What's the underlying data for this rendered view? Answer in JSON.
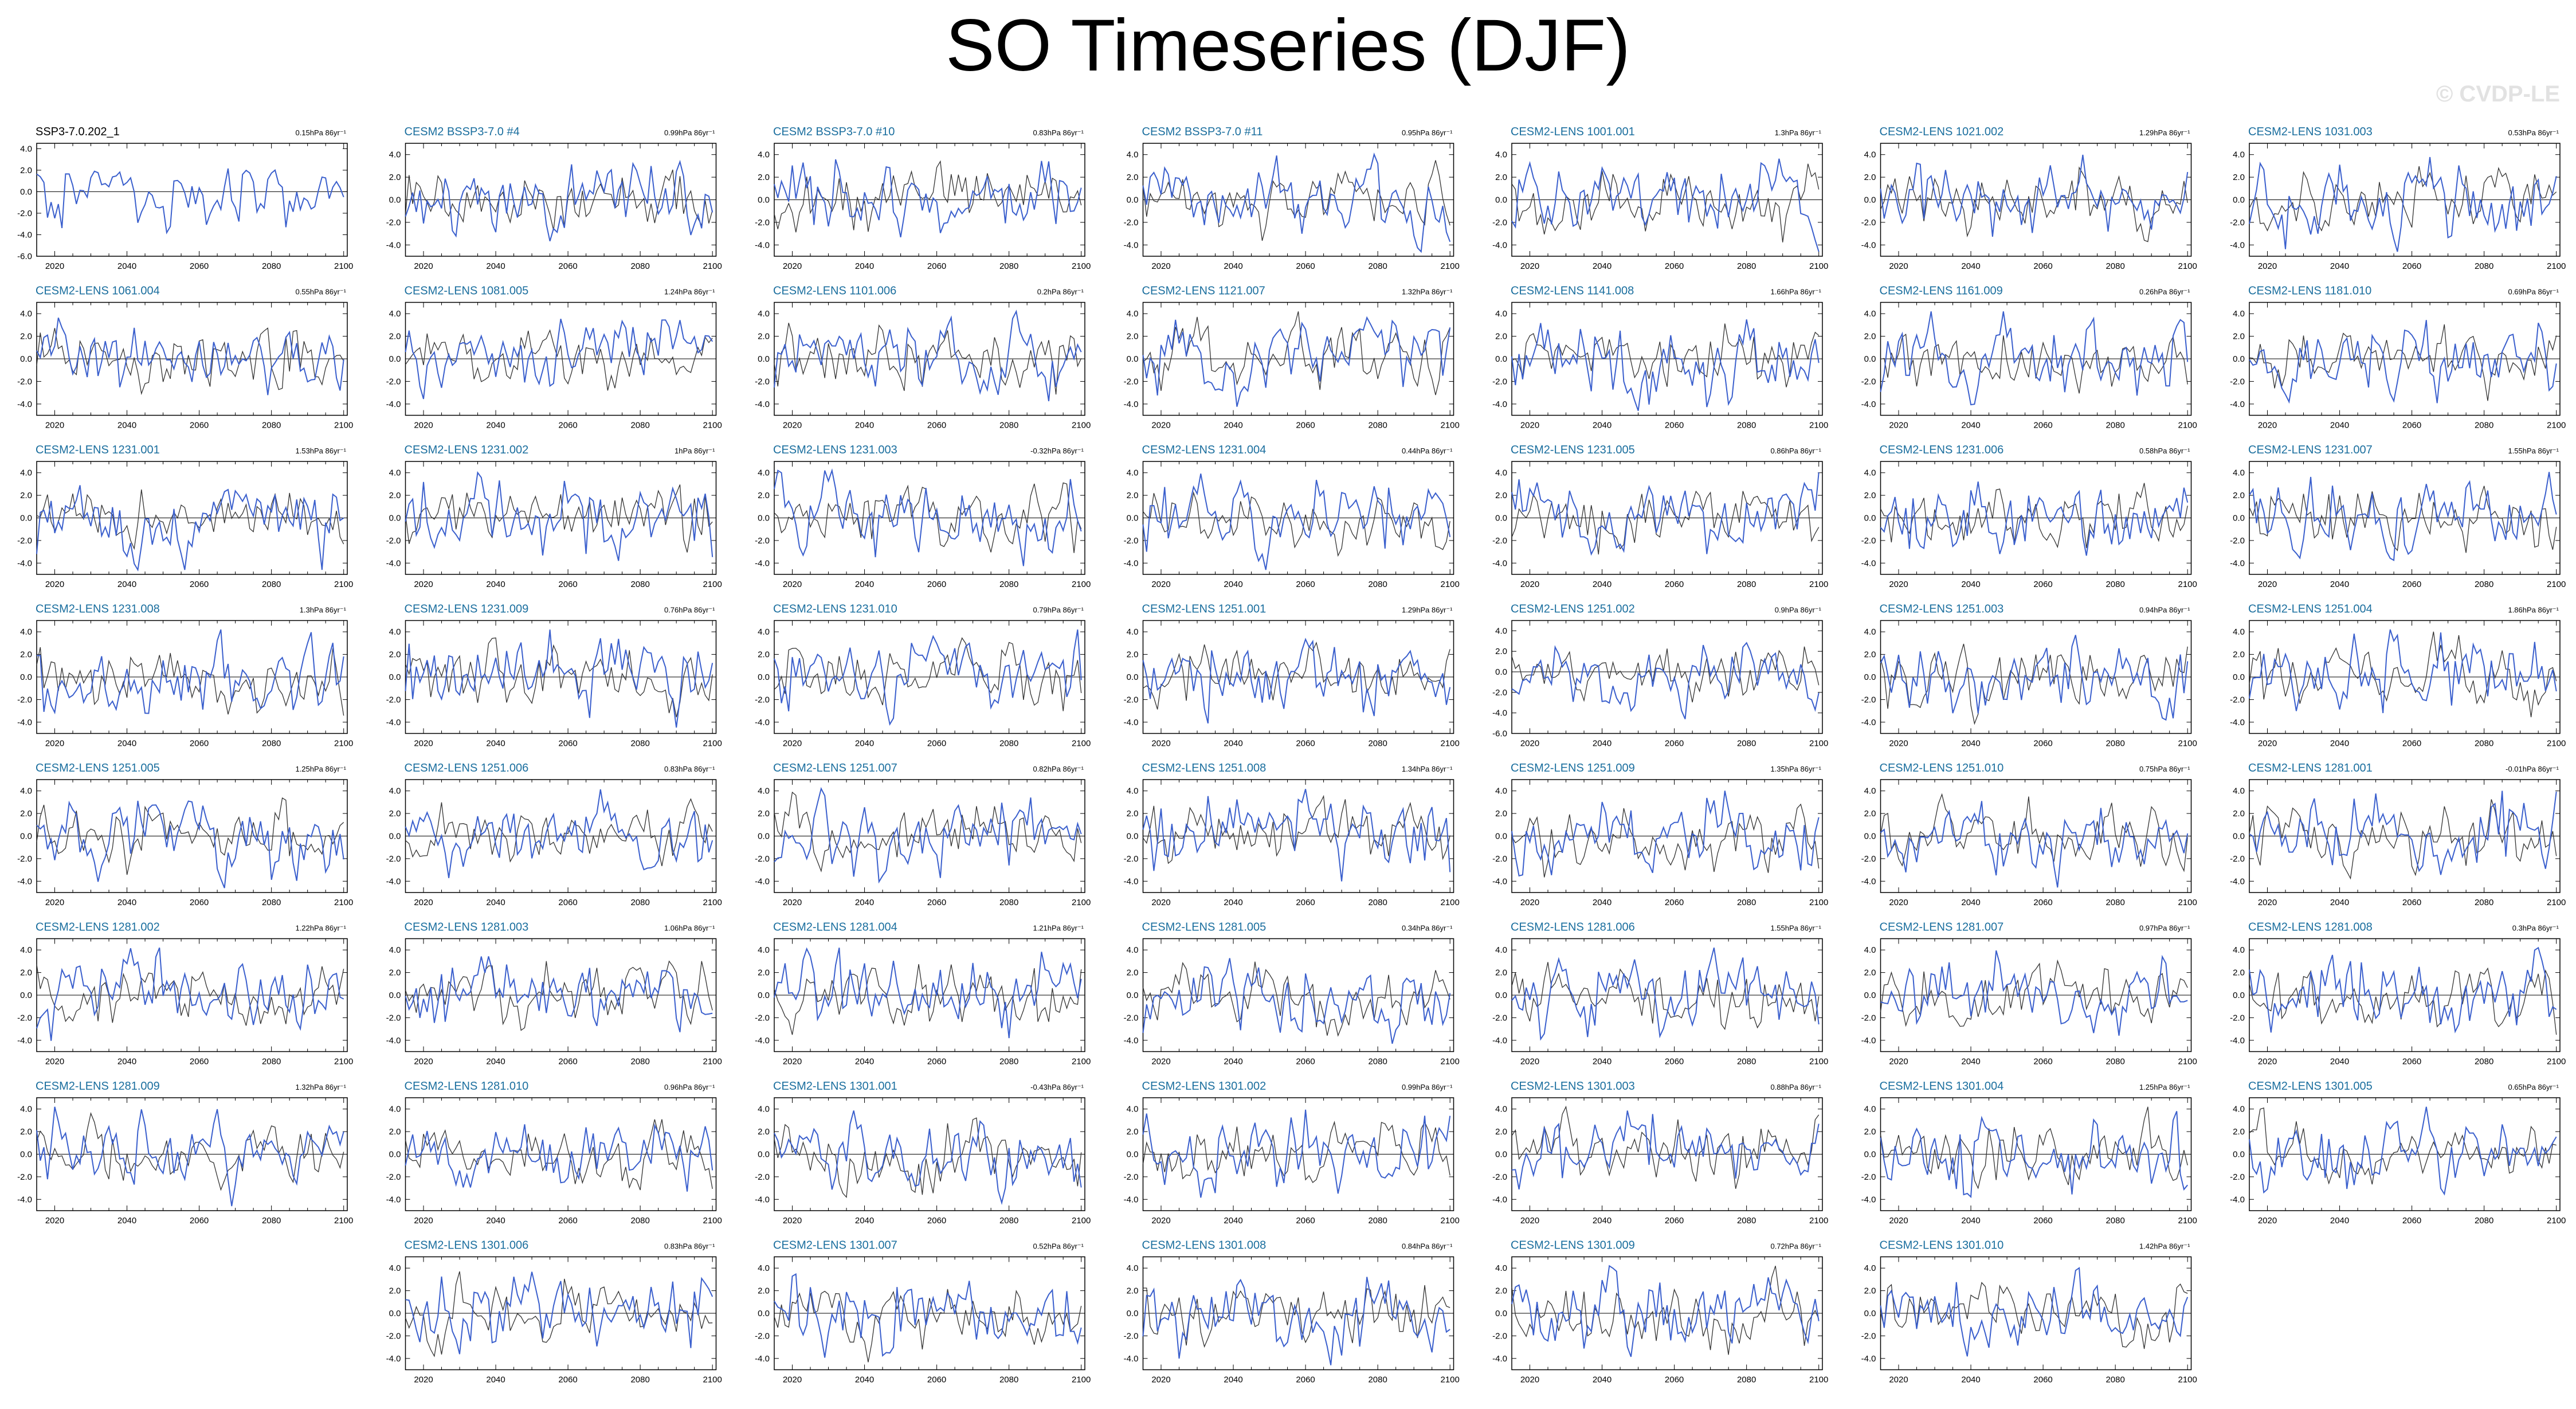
{
  "title": "SO Timeseries (DJF)",
  "watermark": "© CVDP-LE",
  "colors": {
    "observed_title": "#000000",
    "member_title": "#1a6e9e",
    "series_ensemble": "#3a5fcd",
    "series_reference": "#333333",
    "zero_line": "#000000"
  },
  "chart_data": {
    "type": "line",
    "layout": "panel-grid",
    "x_ticks": [
      "2020",
      "2040",
      "2060",
      "2080",
      "2100"
    ],
    "xlim": [
      2015,
      2101
    ],
    "default_ylim": [
      -5,
      5
    ],
    "default_y_ticks": [
      "4.0",
      "2.0",
      "0.0",
      "-2.0",
      "-4.0"
    ],
    "panels": [
      {
        "title": "SSP3-7.0.202_1",
        "trend": "0.15hPa 86yr⁻¹",
        "reference": true,
        "ylim": [
          -6,
          4.5
        ],
        "y_ticks": [
          "4.0",
          "2.0",
          "0.0",
          "-2.0",
          "-4.0",
          "-6.0"
        ]
      },
      {
        "title": "CESM2 BSSP3-7.0 #4",
        "trend": "0.99hPa 86yr⁻¹"
      },
      {
        "title": "CESM2 BSSP3-7.0 #10",
        "trend": "0.83hPa 86yr⁻¹"
      },
      {
        "title": "CESM2 BSSP3-7.0 #11",
        "trend": "0.95hPa 86yr⁻¹"
      },
      {
        "title": "CESM2-LENS 1001.001",
        "trend": "1.3hPa 86yr⁻¹"
      },
      {
        "title": "CESM2-LENS 1021.002",
        "trend": "1.29hPa 86yr⁻¹"
      },
      {
        "title": "CESM2-LENS 1031.003",
        "trend": "0.53hPa 86yr⁻¹"
      },
      {
        "title": "CESM2-LENS 1061.004",
        "trend": "0.55hPa 86yr⁻¹"
      },
      {
        "title": "CESM2-LENS 1081.005",
        "trend": "1.24hPa 86yr⁻¹"
      },
      {
        "title": "CESM2-LENS 1101.006",
        "trend": "0.2hPa 86yr⁻¹"
      },
      {
        "title": "CESM2-LENS 1121.007",
        "trend": "1.32hPa 86yr⁻¹"
      },
      {
        "title": "CESM2-LENS 1141.008",
        "trend": "1.66hPa 86yr⁻¹"
      },
      {
        "title": "CESM2-LENS 1161.009",
        "trend": "0.26hPa 86yr⁻¹"
      },
      {
        "title": "CESM2-LENS 1181.010",
        "trend": "0.69hPa 86yr⁻¹"
      },
      {
        "title": "CESM2-LENS 1231.001",
        "trend": "1.53hPa 86yr⁻¹"
      },
      {
        "title": "CESM2-LENS 1231.002",
        "trend": "1hPa 86yr⁻¹"
      },
      {
        "title": "CESM2-LENS 1231.003",
        "trend": "-0.32hPa 86yr⁻¹"
      },
      {
        "title": "CESM2-LENS 1231.004",
        "trend": "0.44hPa 86yr⁻¹"
      },
      {
        "title": "CESM2-LENS 1231.005",
        "trend": "0.86hPa 86yr⁻¹"
      },
      {
        "title": "CESM2-LENS 1231.006",
        "trend": "0.58hPa 86yr⁻¹"
      },
      {
        "title": "CESM2-LENS 1231.007",
        "trend": "1.55hPa 86yr⁻¹"
      },
      {
        "title": "CESM2-LENS 1231.008",
        "trend": "1.3hPa 86yr⁻¹"
      },
      {
        "title": "CESM2-LENS 1231.009",
        "trend": "0.76hPa 86yr⁻¹"
      },
      {
        "title": "CESM2-LENS 1231.010",
        "trend": "0.79hPa 86yr⁻¹"
      },
      {
        "title": "CESM2-LENS 1251.001",
        "trend": "1.29hPa 86yr⁻¹"
      },
      {
        "title": "CESM2-LENS 1251.002",
        "trend": "0.9hPa 86yr⁻¹",
        "ylim": [
          -6,
          5
        ],
        "y_ticks": [
          "4.0",
          "2.0",
          "0.0",
          "-2.0",
          "-4.0",
          "-6.0"
        ]
      },
      {
        "title": "CESM2-LENS 1251.003",
        "trend": "0.94hPa 86yr⁻¹"
      },
      {
        "title": "CESM2-LENS 1251.004",
        "trend": "1.86hPa 86yr⁻¹"
      },
      {
        "title": "CESM2-LENS 1251.005",
        "trend": "1.25hPa 86yr⁻¹"
      },
      {
        "title": "CESM2-LENS 1251.006",
        "trend": "0.83hPa 86yr⁻¹"
      },
      {
        "title": "CESM2-LENS 1251.007",
        "trend": "0.82hPa 86yr⁻¹"
      },
      {
        "title": "CESM2-LENS 1251.008",
        "trend": "1.34hPa 86yr⁻¹"
      },
      {
        "title": "CESM2-LENS 1251.009",
        "trend": "1.35hPa 86yr⁻¹"
      },
      {
        "title": "CESM2-LENS 1251.010",
        "trend": "0.75hPa 86yr⁻¹"
      },
      {
        "title": "CESM2-LENS 1281.001",
        "trend": "-0.01hPa 86yr⁻¹"
      },
      {
        "title": "CESM2-LENS 1281.002",
        "trend": "1.22hPa 86yr⁻¹"
      },
      {
        "title": "CESM2-LENS 1281.003",
        "trend": "1.06hPa 86yr⁻¹"
      },
      {
        "title": "CESM2-LENS 1281.004",
        "trend": "1.21hPa 86yr⁻¹"
      },
      {
        "title": "CESM2-LENS 1281.005",
        "trend": "0.34hPa 86yr⁻¹"
      },
      {
        "title": "CESM2-LENS 1281.006",
        "trend": "1.55hPa 86yr⁻¹"
      },
      {
        "title": "CESM2-LENS 1281.007",
        "trend": "0.97hPa 86yr⁻¹"
      },
      {
        "title": "CESM2-LENS 1281.008",
        "trend": "0.3hPa 86yr⁻¹"
      },
      {
        "title": "CESM2-LENS 1281.009",
        "trend": "1.32hPa 86yr⁻¹"
      },
      {
        "title": "CESM2-LENS 1281.010",
        "trend": "0.96hPa 86yr⁻¹"
      },
      {
        "title": "CESM2-LENS 1301.001",
        "trend": "-0.43hPa 86yr⁻¹"
      },
      {
        "title": "CESM2-LENS 1301.002",
        "trend": "0.99hPa 86yr⁻¹"
      },
      {
        "title": "CESM2-LENS 1301.003",
        "trend": "0.88hPa 86yr⁻¹"
      },
      {
        "title": "CESM2-LENS 1301.004",
        "trend": "1.25hPa 86yr⁻¹"
      },
      {
        "title": "CESM2-LENS 1301.005",
        "trend": "0.65hPa 86yr⁻¹"
      },
      {
        "title": "CESM2-LENS 1301.006",
        "trend": "0.83hPa 86yr⁻¹"
      },
      {
        "title": "CESM2-LENS 1301.007",
        "trend": "0.52hPa 86yr⁻¹"
      },
      {
        "title": "CESM2-LENS 1301.008",
        "trend": "0.84hPa 86yr⁻¹"
      },
      {
        "title": "CESM2-LENS 1301.009",
        "trend": "0.72hPa 86yr⁻¹"
      },
      {
        "title": "CESM2-LENS 1301.010",
        "trend": "1.42hPa 86yr⁻¹"
      }
    ]
  }
}
